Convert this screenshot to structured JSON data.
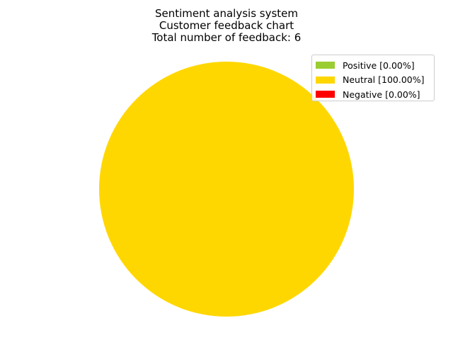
{
  "chart_data": {
    "type": "pie",
    "title": "Sentiment analysis system",
    "subtitle_lines": [
      "Customer feedback chart",
      "Total number of feedback: 6"
    ],
    "categories": [
      "Positive",
      "Neutral",
      "Negative"
    ],
    "values": [
      0.0,
      100.0,
      0.0
    ],
    "colors": [
      "#9acd32",
      "#ffd700",
      "#ff0000"
    ],
    "legend": {
      "placement": "top-right",
      "entries": [
        "Positive [0.00%]",
        "Neutral [100.00%]",
        "Negative [0.00%]"
      ]
    }
  }
}
